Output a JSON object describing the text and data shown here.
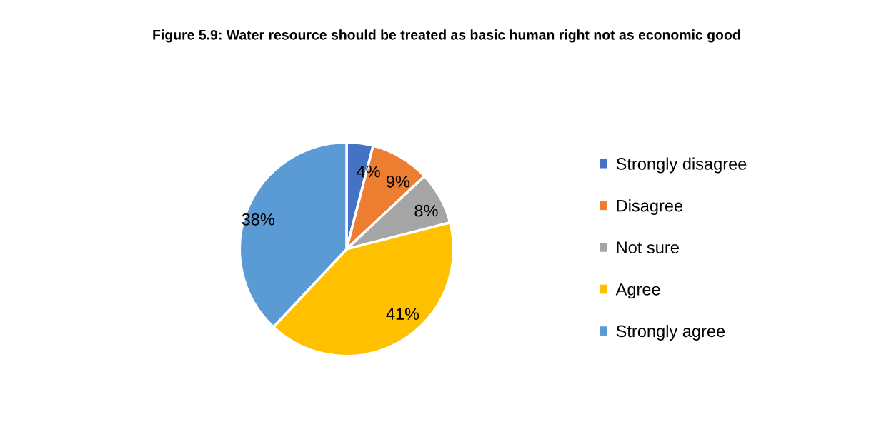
{
  "chart_data": {
    "type": "pie",
    "title": "Figure 5.9: Water resource should be treated as basic human right not as economic good",
    "categories": [
      "Strongly disagree",
      "Disagree",
      "Not sure",
      "Agree",
      "Strongly agree"
    ],
    "values": [
      4,
      9,
      8,
      41,
      38
    ],
    "value_labels": [
      "4%",
      "9%",
      "8%",
      "41%",
      "38%"
    ],
    "colors": [
      "#4472c4",
      "#ed7d31",
      "#a5a5a5",
      "#ffc000",
      "#5b9bd5"
    ],
    "legend": "right"
  }
}
